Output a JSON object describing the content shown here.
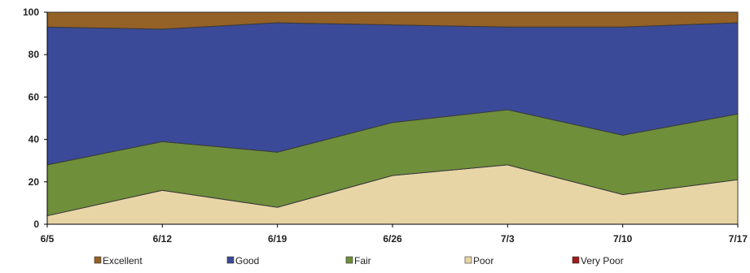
{
  "chart_data": {
    "type": "area",
    "stacked": true,
    "x": [
      "6/5",
      "6/12",
      "6/19",
      "6/26",
      "7/3",
      "7/10",
      "7/17"
    ],
    "series": [
      {
        "name": "Very Poor",
        "color": "#9b1c1c",
        "values": [
          0,
          0,
          0,
          0,
          0,
          0,
          0
        ]
      },
      {
        "name": "Poor",
        "color": "#e8d5a6",
        "values": [
          4,
          16,
          8,
          23,
          28,
          14,
          21
        ]
      },
      {
        "name": "Fair",
        "color": "#6f8f3b",
        "values": [
          24,
          23,
          26,
          25,
          26,
          28,
          31
        ]
      },
      {
        "name": "Good",
        "color": "#3b4a98",
        "values": [
          65,
          53,
          61,
          46,
          39,
          51,
          43
        ]
      },
      {
        "name": "Excellent",
        "color": "#946126",
        "values": [
          7,
          8,
          5,
          6,
          7,
          7,
          5
        ]
      }
    ],
    "legend_order": [
      "Excellent",
      "Good",
      "Fair",
      "Poor",
      "Very Poor"
    ],
    "ylim": [
      0,
      100
    ],
    "yticks": [
      "0",
      "20",
      "40",
      "60",
      "80",
      "100"
    ],
    "xlabel": "",
    "ylabel": "",
    "title": "",
    "grid": false,
    "legend_position": "bottom"
  }
}
